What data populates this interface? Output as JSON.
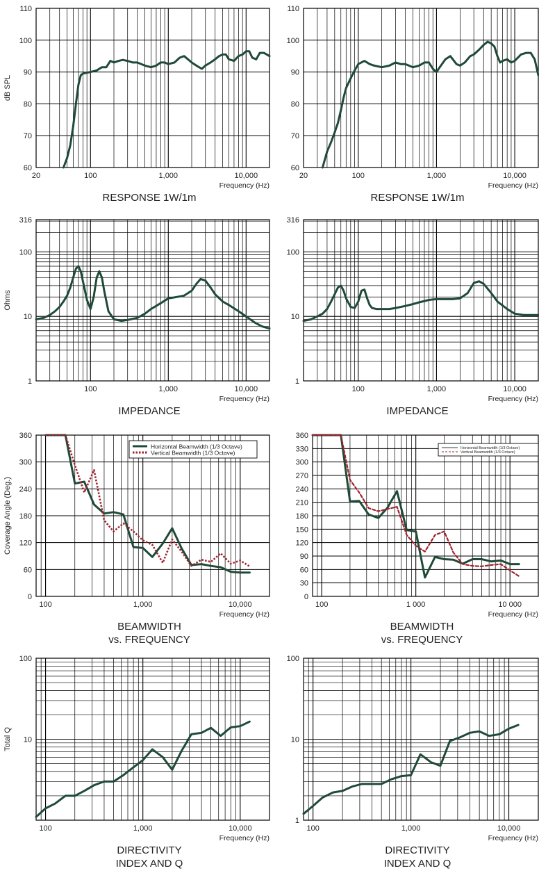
{
  "page": {
    "background": "#ffffff",
    "curve_color": "#1f4a38",
    "vertical_color": "#a0232d",
    "grid_color": "#000000"
  },
  "chart_data": [
    {
      "type": "line",
      "scale": "logx",
      "title": "RESPONSE 1W/1m",
      "xlabel": "Frequency (Hz)",
      "ylabel": "dB SPL",
      "xlim": [
        20,
        20000
      ],
      "ylim": [
        60,
        110
      ],
      "xticks": [
        {
          "v": 20,
          "t": "20"
        },
        {
          "v": 100,
          "t": "100"
        },
        {
          "v": 1000,
          "t": "1,000"
        },
        {
          "v": 10000,
          "t": "10,000"
        }
      ],
      "yticks": [
        {
          "v": 60,
          "t": "60"
        },
        {
          "v": 70,
          "t": "70"
        },
        {
          "v": 80,
          "t": "80"
        },
        {
          "v": 90,
          "t": "90"
        },
        {
          "v": 100,
          "t": "100"
        },
        {
          "v": 110,
          "t": "110"
        }
      ],
      "series": [
        {
          "x": [
            45,
            50,
            55,
            60,
            65,
            70,
            75,
            80,
            90,
            100,
            120,
            140,
            160,
            180,
            200,
            230,
            260,
            300,
            350,
            400,
            500,
            600,
            700,
            800,
            900,
            1000,
            1200,
            1400,
            1600,
            2000,
            2300,
            2700,
            3000,
            3500,
            4000,
            4500,
            5000,
            5500,
            6000,
            7000,
            8000,
            9000,
            10000,
            11000,
            12000,
            13500,
            15000,
            17000,
            20000
          ],
          "y": [
            60,
            63,
            67,
            73,
            80,
            86,
            89,
            89.5,
            89.8,
            90,
            90.5,
            91.5,
            91.5,
            93.5,
            93,
            93.5,
            93.8,
            93.5,
            93,
            93,
            92,
            91.5,
            92,
            93,
            93,
            92.5,
            93,
            94.5,
            95,
            93,
            92,
            91,
            92,
            93,
            94,
            95,
            95.5,
            95.5,
            94,
            93.5,
            95,
            95.5,
            96.5,
            96.5,
            94.5,
            94,
            96,
            96,
            95
          ]
        }
      ]
    },
    {
      "type": "line",
      "scale": "logx",
      "title": "RESPONSE 1W/1m",
      "xlabel": "Frequency (Hz)",
      "ylabel": "",
      "xlim": [
        20,
        20000
      ],
      "ylim": [
        60,
        110
      ],
      "xticks": [
        {
          "v": 20,
          "t": "20"
        },
        {
          "v": 100,
          "t": "100"
        },
        {
          "v": 1000,
          "t": "1,000"
        },
        {
          "v": 10000,
          "t": "10,000"
        }
      ],
      "yticks": [
        {
          "v": 60,
          "t": "60"
        },
        {
          "v": 70,
          "t": "70"
        },
        {
          "v": 80,
          "t": "80"
        },
        {
          "v": 90,
          "t": "90"
        },
        {
          "v": 100,
          "t": "100"
        },
        {
          "v": 110,
          "t": "110"
        }
      ],
      "series": [
        {
          "x": [
            35,
            40,
            45,
            50,
            55,
            60,
            65,
            70,
            80,
            90,
            100,
            120,
            140,
            160,
            200,
            250,
            300,
            350,
            400,
            500,
            600,
            700,
            800,
            900,
            1000,
            1100,
            1300,
            1500,
            1800,
            2000,
            2300,
            2700,
            3000,
            3500,
            4000,
            4500,
            5000,
            5500,
            6000,
            6500,
            7000,
            8000,
            9000,
            10000,
            12000,
            14000,
            16000,
            18000,
            20000
          ],
          "y": [
            60,
            65,
            68,
            71,
            74,
            78,
            82,
            85,
            88,
            90.5,
            92.5,
            93.5,
            92.5,
            92,
            91.5,
            92,
            93,
            92.5,
            92.5,
            91.5,
            92,
            93,
            93,
            91,
            90,
            91.5,
            94,
            95,
            92.5,
            92,
            93,
            95,
            95.5,
            97,
            98.5,
            99.5,
            99,
            98,
            95,
            93,
            93.5,
            94,
            93,
            93.5,
            95.5,
            96,
            96,
            94,
            89
          ]
        }
      ]
    },
    {
      "type": "line",
      "scale": "logxy",
      "title": "IMPEDANCE",
      "xlabel": "Frequency (Hz)",
      "ylabel": "Ohms",
      "xlim": [
        20,
        20000
      ],
      "ylim": [
        1,
        316
      ],
      "xticks": [
        {
          "v": 100,
          "t": "100"
        },
        {
          "v": 1000,
          "t": "1,000"
        },
        {
          "v": 10000,
          "t": "10,000"
        }
      ],
      "yticks": [
        {
          "v": 1,
          "t": "1"
        },
        {
          "v": 10,
          "t": "10"
        },
        {
          "v": 100,
          "t": "100"
        },
        {
          "v": 316,
          "t": "316"
        }
      ],
      "series": [
        {
          "x": [
            20,
            25,
            30,
            35,
            40,
            45,
            50,
            55,
            60,
            65,
            70,
            75,
            80,
            90,
            100,
            110,
            120,
            130,
            140,
            150,
            170,
            200,
            250,
            300,
            400,
            500,
            600,
            800,
            1000,
            1300,
            1600,
            2000,
            2300,
            2600,
            3000,
            3500,
            4000,
            5000,
            6000,
            8000,
            10000,
            13000,
            16000,
            20000
          ],
          "y": [
            9,
            9.5,
            10.5,
            12,
            14,
            17,
            21,
            28,
            40,
            55,
            60,
            50,
            35,
            18,
            13,
            20,
            40,
            50,
            40,
            25,
            12,
            9,
            8.5,
            8.8,
            9.5,
            11,
            13,
            16,
            19,
            20,
            21,
            25,
            32,
            38,
            36,
            28,
            22,
            17,
            15,
            12,
            10,
            8,
            7,
            6.5
          ]
        }
      ]
    },
    {
      "type": "line",
      "scale": "logxy",
      "title": "IMPEDANCE",
      "xlabel": "Frequency (Hz)",
      "ylabel": "",
      "xlim": [
        20,
        20000
      ],
      "ylim": [
        1,
        316
      ],
      "xticks": [
        {
          "v": 100,
          "t": "100"
        },
        {
          "v": 1000,
          "t": "1,000"
        },
        {
          "v": 10000,
          "t": "10,000"
        }
      ],
      "yticks": [
        {
          "v": 1,
          "t": "1"
        },
        {
          "v": 10,
          "t": "10"
        },
        {
          "v": 100,
          "t": "100"
        },
        {
          "v": 316,
          "t": "316"
        }
      ],
      "series": [
        {
          "x": [
            20,
            25,
            30,
            35,
            40,
            45,
            50,
            55,
            60,
            65,
            70,
            80,
            90,
            100,
            110,
            120,
            130,
            140,
            150,
            170,
            200,
            250,
            300,
            400,
            500,
            600,
            800,
            1000,
            1300,
            1600,
            2000,
            2500,
            3000,
            3500,
            4000,
            5000,
            6000,
            8000,
            10000,
            13000,
            16000,
            20000
          ],
          "y": [
            8.5,
            9,
            10,
            11,
            13,
            17,
            22,
            28,
            30,
            25,
            19,
            14,
            13.5,
            17,
            25,
            26,
            19,
            15,
            13.5,
            13,
            13,
            13,
            13.5,
            14.5,
            15.5,
            16.5,
            18,
            18.5,
            18.5,
            18.5,
            19,
            23,
            33,
            35,
            32,
            23,
            17,
            13,
            11,
            10.5,
            10.5,
            10.5
          ]
        }
      ]
    },
    {
      "type": "line",
      "scale": "logx",
      "title": "BEAMWIDTH\nvs. FREQUENCY",
      "xlabel": "Frequency (Hz)",
      "ylabel": "Coverage Angle (Deg.)",
      "xlim": [
        80,
        20000
      ],
      "ylim": [
        0,
        360
      ],
      "xticks": [
        {
          "v": 100,
          "t": "100"
        },
        {
          "v": 1000,
          "t": "1,000"
        },
        {
          "v": 10000,
          "t": "10,000"
        }
      ],
      "yticks": [
        {
          "v": 0,
          "t": "0"
        },
        {
          "v": 60,
          "t": "60"
        },
        {
          "v": 120,
          "t": "120"
        },
        {
          "v": 180,
          "t": "180"
        },
        {
          "v": 240,
          "t": "240"
        },
        {
          "v": 300,
          "t": "300"
        },
        {
          "v": 360,
          "t": "360"
        }
      ],
      "legend": "top-right",
      "series": [
        {
          "name": "Horizontal Beamwidth (1/3 Octave)",
          "style": "solid",
          "x": [
            100,
            125,
            160,
            200,
            250,
            315,
            400,
            500,
            630,
            800,
            1000,
            1250,
            1600,
            2000,
            2500,
            3150,
            4000,
            5000,
            6300,
            8000,
            10000,
            12500
          ],
          "y": [
            360,
            360,
            360,
            252,
            256,
            205,
            185,
            188,
            183,
            110,
            108,
            88,
            118,
            152,
            107,
            70,
            72,
            68,
            65,
            55,
            53,
            53
          ]
        },
        {
          "name": "Vertical Beamwidth (1/3 Octave)",
          "style": "dotted",
          "x": [
            100,
            125,
            160,
            200,
            250,
            315,
            400,
            500,
            630,
            800,
            1000,
            1250,
            1600,
            2000,
            2500,
            3150,
            4000,
            5000,
            6300,
            8000,
            10000,
            12500
          ],
          "y": [
            360,
            360,
            360,
            293,
            232,
            282,
            170,
            145,
            163,
            145,
            125,
            115,
            75,
            127,
            100,
            68,
            82,
            77,
            96,
            73,
            80,
            67
          ]
        }
      ]
    },
    {
      "type": "line",
      "scale": "logx",
      "title": "BEAMWIDTH\nvs. FREQUENCY",
      "xlabel": "Frequency (Hz)",
      "ylabel": "",
      "xlim": [
        80,
        20000
      ],
      "ylim": [
        0,
        360
      ],
      "xticks": [
        {
          "v": 100,
          "t": "100"
        },
        {
          "v": 1000,
          "t": "1 000"
        },
        {
          "v": 10000,
          "t": "10 000"
        }
      ],
      "yticks": [
        {
          "v": 0,
          "t": "0"
        },
        {
          "v": 30,
          "t": "30"
        },
        {
          "v": 60,
          "t": "60"
        },
        {
          "v": 90,
          "t": "90"
        },
        {
          "v": 120,
          "t": "120"
        },
        {
          "v": 150,
          "t": "150"
        },
        {
          "v": 180,
          "t": "180"
        },
        {
          "v": 210,
          "t": "210"
        },
        {
          "v": 240,
          "t": "240"
        },
        {
          "v": 270,
          "t": "270"
        },
        {
          "v": 300,
          "t": "300"
        },
        {
          "v": 330,
          "t": "330"
        },
        {
          "v": 360,
          "t": "360"
        }
      ],
      "legend": "top-right",
      "series": [
        {
          "name": "Horizontal Beamwidth (1/3 Octave)",
          "style": "solid",
          "x": [
            80,
            100,
            125,
            160,
            200,
            250,
            315,
            400,
            500,
            630,
            800,
            1000,
            1250,
            1600,
            2000,
            2500,
            3150,
            4000,
            5000,
            6300,
            8000,
            10000,
            12500
          ],
          "y": [
            360,
            360,
            360,
            360,
            212,
            213,
            183,
            175,
            198,
            235,
            148,
            145,
            42,
            88,
            83,
            82,
            73,
            83,
            83,
            78,
            80,
            72,
            72
          ]
        },
        {
          "name": "Vertical Beamwidth (1/3 Octave)",
          "style": "dashed",
          "x": [
            80,
            100,
            125,
            160,
            200,
            250,
            315,
            400,
            500,
            630,
            800,
            1000,
            1250,
            1600,
            2000,
            2500,
            3150,
            4000,
            5000,
            6300,
            8000,
            10000,
            12500
          ],
          "y": [
            360,
            360,
            360,
            360,
            260,
            232,
            197,
            190,
            195,
            200,
            137,
            113,
            100,
            137,
            145,
            98,
            72,
            68,
            67,
            70,
            72,
            58,
            45
          ]
        }
      ]
    },
    {
      "type": "line",
      "scale": "logxy",
      "title": "DIRECTIVITY\nINDEX AND Q",
      "xlabel": "Frequency (Hz)",
      "ylabel": "Total Q",
      "xlim": [
        80,
        20000
      ],
      "ylim": [
        1,
        100
      ],
      "xticks": [
        {
          "v": 100,
          "t": "100"
        },
        {
          "v": 1000,
          "t": "1,000"
        },
        {
          "v": 10000,
          "t": "10,000"
        }
      ],
      "yticks": [
        {
          "v": 10,
          "t": "10"
        },
        {
          "v": 100,
          "t": "100"
        }
      ],
      "series": [
        {
          "x": [
            80,
            100,
            125,
            160,
            200,
            250,
            315,
            400,
            500,
            630,
            800,
            1000,
            1250,
            1600,
            2000,
            2500,
            3150,
            4000,
            5000,
            6300,
            8000,
            10000,
            12500
          ],
          "y": [
            1.1,
            1.4,
            1.6,
            2,
            2,
            2.3,
            2.7,
            3,
            3,
            3.6,
            4.5,
            5.5,
            7.5,
            6,
            4.2,
            7.2,
            11.5,
            12,
            13.8,
            11,
            14,
            14.5,
            16.5
          ]
        }
      ]
    },
    {
      "type": "line",
      "scale": "logxy",
      "title": "DIRECTIVITY\nINDEX AND Q",
      "xlabel": "Frequency (Hz)",
      "ylabel": "",
      "xlim": [
        80,
        20000
      ],
      "ylim": [
        1,
        100
      ],
      "xticks": [
        {
          "v": 100,
          "t": "100"
        },
        {
          "v": 1000,
          "t": "1,000"
        },
        {
          "v": 10000,
          "t": "10,000"
        }
      ],
      "yticks": [
        {
          "v": 1,
          "t": "1"
        },
        {
          "v": 10,
          "t": "10"
        },
        {
          "v": 100,
          "t": "100"
        }
      ],
      "series": [
        {
          "x": [
            80,
            100,
            125,
            160,
            200,
            250,
            315,
            400,
            500,
            630,
            800,
            1000,
            1250,
            1600,
            2000,
            2500,
            3150,
            4000,
            5000,
            6300,
            8000,
            10000,
            12500
          ],
          "y": [
            1.2,
            1.5,
            1.9,
            2.2,
            2.3,
            2.6,
            2.8,
            2.8,
            2.8,
            3.2,
            3.5,
            3.6,
            6.5,
            5.2,
            4.7,
            9.5,
            10.5,
            12,
            12.5,
            11,
            11.5,
            13.5,
            15
          ]
        }
      ]
    }
  ]
}
